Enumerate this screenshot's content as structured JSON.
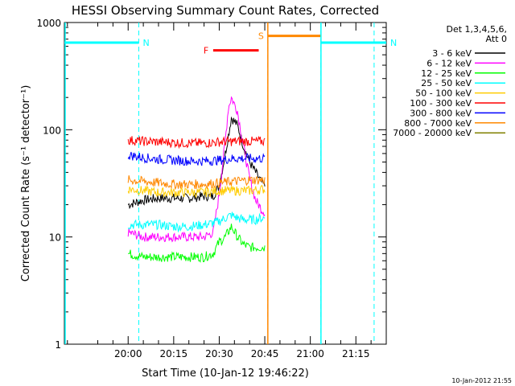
{
  "chart_data": {
    "type": "line",
    "title": "HESSI Observing Summary Count Rates, Corrected",
    "xlabel": "Start Time (10-Jan-12 19:46:22)",
    "ylabel": "Corrected Count Rate (s⁻¹ detector⁻¹)",
    "xlim_minutes": [
      -21,
      85
    ],
    "ylim": [
      1,
      1000
    ],
    "yscale": "log",
    "x_ticks": [
      {
        "t": 0,
        "label": "20:00"
      },
      {
        "t": 15,
        "label": "20:15"
      },
      {
        "t": 30,
        "label": "20:30"
      },
      {
        "t": 45,
        "label": "20:45"
      },
      {
        "t": 60,
        "label": "21:00"
      },
      {
        "t": 75,
        "label": "21:15"
      }
    ],
    "y_ticks": [
      {
        "v": 1,
        "label": "1"
      },
      {
        "v": 10,
        "label": "10"
      },
      {
        "v": 100,
        "label": "100"
      },
      {
        "v": 1000,
        "label": "1000"
      }
    ],
    "legend": {
      "header_lines": [
        "Det 1,3,4,5,6,",
        "Att 0"
      ],
      "placement": "right"
    },
    "series": [
      {
        "name": "3 - 6 keV",
        "color": "#000000",
        "x": [
          0,
          5,
          10,
          15,
          20,
          25,
          28,
          30,
          32,
          34,
          36,
          38,
          40,
          42,
          44,
          45
        ],
        "y": [
          20,
          22,
          23,
          23,
          23,
          24,
          24,
          30,
          60,
          130,
          110,
          70,
          50,
          40,
          32,
          30
        ]
      },
      {
        "name": "6 - 12 keV",
        "color": "#ff00ff",
        "x": [
          0,
          5,
          10,
          15,
          20,
          25,
          28,
          30,
          32,
          33,
          34,
          36,
          38,
          40,
          42,
          44,
          45
        ],
        "y": [
          11,
          10,
          10,
          10,
          10,
          10,
          11,
          25,
          80,
          160,
          200,
          150,
          70,
          35,
          22,
          18,
          17
        ]
      },
      {
        "name": "12 - 25 keV",
        "color": "#00ff00",
        "x": [
          0,
          5,
          10,
          15,
          20,
          25,
          28,
          30,
          32,
          34,
          36,
          38,
          40,
          42,
          44,
          45
        ],
        "y": [
          7,
          6.5,
          6.5,
          6.5,
          6.5,
          6.5,
          7,
          9,
          10,
          12.5,
          10,
          8.5,
          8,
          8,
          8,
          8
        ]
      },
      {
        "name": "25 - 50 keV",
        "color": "#00ffff",
        "x": [
          0,
          5,
          10,
          15,
          20,
          25,
          28,
          30,
          32,
          34,
          36,
          38,
          40,
          42,
          44,
          45
        ],
        "y": [
          13,
          13,
          13,
          12.5,
          12.5,
          13,
          13.5,
          14,
          15,
          16,
          15,
          14.5,
          14.5,
          14.5,
          15,
          15
        ]
      },
      {
        "name": "50 - 100 keV",
        "color": "#ffcc00",
        "x": [
          0,
          5,
          10,
          15,
          20,
          25,
          30,
          35,
          40,
          45
        ],
        "y": [
          28,
          27,
          26,
          26,
          26,
          26,
          27,
          27,
          27,
          28
        ]
      },
      {
        "name": "100 - 300 keV",
        "color": "#ff0000",
        "x": [
          0,
          5,
          10,
          15,
          20,
          25,
          30,
          35,
          40,
          45
        ],
        "y": [
          80,
          78,
          77,
          76,
          75,
          75,
          77,
          78,
          78,
          78
        ]
      },
      {
        "name": "300 - 800 keV",
        "color": "#0000ff",
        "x": [
          0,
          5,
          10,
          15,
          20,
          25,
          30,
          35,
          40,
          45
        ],
        "y": [
          58,
          55,
          53,
          52,
          51,
          51,
          52,
          54,
          54,
          54
        ]
      },
      {
        "name": "800 - 7000 keV",
        "color": "#ff8800",
        "x": [
          0,
          5,
          10,
          15,
          20,
          25,
          30,
          35,
          40,
          45
        ],
        "y": [
          34,
          33,
          32,
          31,
          31,
          31,
          32,
          33,
          34,
          34
        ]
      },
      {
        "name": "7000 - 20000 keV",
        "color": "#808000",
        "x": [],
        "y": []
      }
    ],
    "flags": [
      {
        "letter": "N",
        "color": "#00ffff",
        "x_start": -21,
        "x_end": 3.5,
        "y": 650,
        "vlines": [
          3.5
        ]
      },
      {
        "letter": "N",
        "color": "#00ffff",
        "x_start": 63.5,
        "x_end": 85,
        "y": 650,
        "vlines": [
          63.5,
          81
        ]
      },
      {
        "letter": "S",
        "color": "#ff8800",
        "x_start": 46,
        "x_end": 63.5,
        "y": 750,
        "vlines": [
          46,
          63.5
        ]
      },
      {
        "letter": "F",
        "color": "#ff0000",
        "x_start": 28,
        "x_end": 43,
        "y": 550,
        "vlines": []
      }
    ]
  },
  "footer_timestamp": "10-Jan-2012 21:55"
}
